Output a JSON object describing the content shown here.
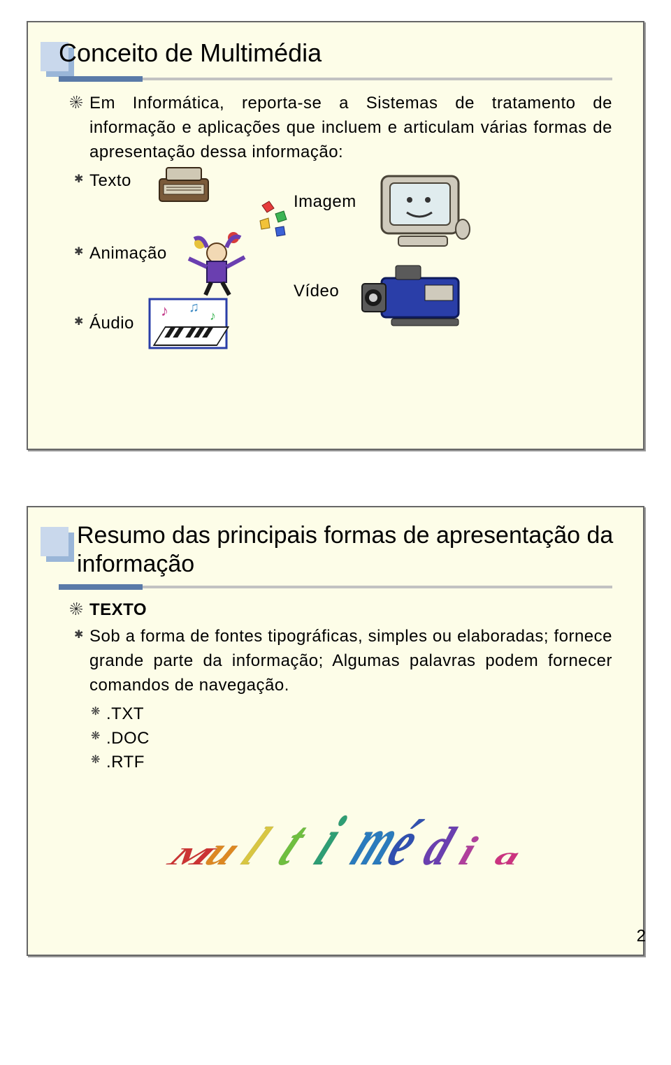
{
  "colors": {
    "slide_bg": "#fdfde8",
    "slide_border": "#666666",
    "title_block_light": "#c9d8ec",
    "title_block_dark": "#9ab6d8",
    "rule_dark": "#5a7aa8",
    "rule_light": "#c2c2c2",
    "text": "#000000",
    "page_bg": "#ffffff"
  },
  "typography": {
    "title_size_pt": 28,
    "body_size_pt": 18,
    "font_family": "Arial"
  },
  "slide1": {
    "title": "Conceito de Multimédia",
    "paragraph": "Em Informática, reporta-se a Sistemas de tratamento de informação e aplicações que incluem e articulam várias formas de apresentação dessa informação:",
    "items": {
      "texto": "Texto",
      "imagem": "Imagem",
      "animacao": "Animação",
      "video": "Vídeo",
      "audio": "Áudio"
    },
    "icons": {
      "typewriter": "typewriter-icon",
      "monitor": "monitor-icon",
      "jester": "jester-icon",
      "camcorder": "camcorder-icon",
      "piano": "piano-icon"
    }
  },
  "slide2": {
    "title": "Resumo das principais formas de apresentação da informação",
    "heading": "TEXTO",
    "paragraph": "Sob a forma de fontes tipográficas, simples ou elaboradas; fornece grande parte da informação; Algumas palavras podem fornecer comandos de navegação.",
    "formats": [
      ".TXT",
      ".DOC",
      ".RTF"
    ],
    "footer_word": "Multimédia",
    "footer_colors": [
      "#cc3333",
      "#dd8822",
      "#d8c642",
      "#6fbf3f",
      "#2e9e74",
      "#2a7bbd",
      "#3050b0",
      "#6a3fb0",
      "#b03f9c",
      "#cc3380"
    ]
  },
  "page_number": "2"
}
